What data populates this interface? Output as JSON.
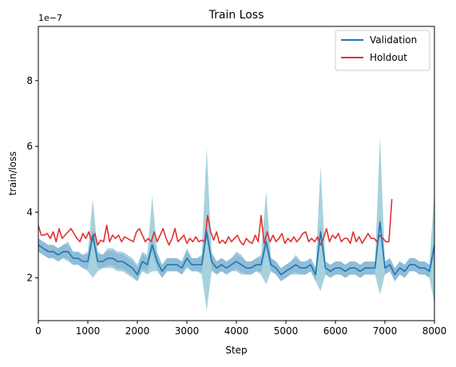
{
  "chart_data": {
    "type": "line",
    "title": "Train Loss",
    "xlabel": "Step",
    "ylabel": "train/loss",
    "y_offset_label": "1e−7",
    "xlim": [
      0,
      8000
    ],
    "ylim": [
      0.7,
      9.65
    ],
    "y_scale_note": "values are in units of 1e-7",
    "xticks": [
      0,
      1000,
      2000,
      3000,
      4000,
      5000,
      6000,
      7000,
      8000
    ],
    "xtick_labels": [
      "0",
      "1000",
      "2000",
      "3000",
      "4000",
      "5000",
      "6000",
      "7000",
      "8000"
    ],
    "yticks": [
      2,
      4,
      6,
      8
    ],
    "ytick_labels": [
      "2",
      "4",
      "6",
      "8"
    ],
    "grid": false,
    "legend_position": "top-right",
    "series": [
      {
        "name": "Validation",
        "color": "#1f77b4",
        "band_color": "#8fbcd7",
        "spike_color": "#a6d2dd",
        "x": [
          0,
          100,
          200,
          300,
          400,
          500,
          600,
          700,
          800,
          900,
          1000,
          1100,
          1200,
          1300,
          1400,
          1500,
          1600,
          1700,
          1800,
          1900,
          2000,
          2100,
          2200,
          2300,
          2400,
          2500,
          2600,
          2700,
          2800,
          2900,
          3000,
          3100,
          3200,
          3300,
          3400,
          3500,
          3600,
          3700,
          3800,
          3900,
          4000,
          4100,
          4200,
          4300,
          4400,
          4500,
          4600,
          4700,
          4800,
          4900,
          5000,
          5100,
          5200,
          5300,
          5400,
          5500,
          5600,
          5700,
          5800,
          5900,
          6000,
          6100,
          6200,
          6300,
          6400,
          6500,
          6600,
          6700,
          6800,
          6900,
          7000,
          7100,
          7200,
          7300,
          7400,
          7500,
          7600,
          7700,
          7800,
          7900,
          8000
        ],
        "y": [
          3.0,
          2.9,
          2.8,
          2.8,
          2.7,
          2.8,
          2.8,
          2.6,
          2.6,
          2.5,
          2.5,
          3.3,
          2.5,
          2.5,
          2.6,
          2.6,
          2.5,
          2.5,
          2.4,
          2.3,
          2.1,
          2.5,
          2.4,
          3.0,
          2.5,
          2.2,
          2.4,
          2.4,
          2.4,
          2.3,
          2.6,
          2.4,
          2.4,
          2.4,
          3.4,
          2.5,
          2.3,
          2.4,
          2.3,
          2.4,
          2.5,
          2.4,
          2.3,
          2.3,
          2.4,
          2.4,
          3.1,
          2.4,
          2.3,
          2.1,
          2.2,
          2.3,
          2.4,
          2.3,
          2.3,
          2.4,
          2.1,
          3.4,
          2.3,
          2.2,
          2.3,
          2.3,
          2.2,
          2.3,
          2.3,
          2.2,
          2.3,
          2.3,
          2.3,
          3.7,
          2.3,
          2.4,
          2.1,
          2.3,
          2.2,
          2.4,
          2.4,
          2.3,
          2.3,
          2.2,
          3.0
        ],
        "band_lower": [
          2.8,
          2.7,
          2.6,
          2.6,
          2.5,
          2.6,
          2.5,
          2.4,
          2.4,
          2.3,
          2.2,
          2.0,
          2.2,
          2.3,
          2.3,
          2.3,
          2.2,
          2.2,
          2.1,
          2.0,
          1.9,
          2.2,
          2.1,
          2.2,
          2.2,
          2.0,
          2.2,
          2.2,
          2.2,
          2.1,
          2.3,
          2.2,
          2.2,
          2.1,
          1.0,
          2.2,
          2.1,
          2.2,
          2.1,
          2.2,
          2.2,
          2.1,
          2.1,
          2.1,
          2.2,
          2.1,
          1.8,
          2.2,
          2.1,
          1.9,
          2.0,
          2.1,
          2.1,
          2.1,
          2.1,
          2.2,
          1.9,
          1.6,
          2.1,
          2.0,
          2.1,
          2.1,
          2.0,
          2.1,
          2.1,
          2.0,
          2.1,
          2.1,
          2.1,
          1.5,
          2.1,
          2.2,
          1.9,
          2.1,
          2.0,
          2.2,
          2.2,
          2.1,
          2.1,
          2.0,
          1.2
        ],
        "band_upper": [
          3.2,
          3.1,
          3.0,
          3.0,
          2.9,
          3.0,
          3.1,
          2.8,
          2.8,
          2.7,
          2.8,
          4.4,
          2.8,
          2.7,
          2.9,
          2.9,
          2.8,
          2.8,
          2.7,
          2.6,
          2.4,
          2.8,
          2.7,
          4.5,
          2.8,
          2.4,
          2.6,
          2.6,
          2.6,
          2.5,
          2.9,
          2.6,
          2.6,
          2.7,
          5.95,
          2.8,
          2.5,
          2.6,
          2.5,
          2.6,
          2.8,
          2.7,
          2.5,
          2.5,
          2.6,
          2.7,
          4.65,
          2.6,
          2.5,
          2.3,
          2.4,
          2.5,
          2.7,
          2.5,
          2.5,
          2.6,
          2.3,
          5.4,
          2.5,
          2.4,
          2.5,
          2.5,
          2.4,
          2.5,
          2.5,
          2.4,
          2.5,
          2.5,
          2.5,
          6.3,
          2.5,
          2.6,
          2.3,
          2.5,
          2.4,
          2.6,
          2.6,
          2.5,
          2.5,
          2.4,
          4.7
        ]
      },
      {
        "name": "Holdout",
        "color": "#e03232",
        "x": [
          0,
          60,
          120,
          180,
          240,
          300,
          360,
          420,
          480,
          540,
          600,
          660,
          720,
          780,
          840,
          900,
          960,
          1020,
          1080,
          1140,
          1200,
          1260,
          1320,
          1380,
          1440,
          1500,
          1560,
          1620,
          1680,
          1740,
          1800,
          1860,
          1920,
          1980,
          2040,
          2100,
          2160,
          2220,
          2280,
          2340,
          2400,
          2460,
          2520,
          2580,
          2640,
          2700,
          2760,
          2820,
          2880,
          2940,
          3000,
          3060,
          3120,
          3180,
          3240,
          3300,
          3360,
          3420,
          3480,
          3540,
          3600,
          3660,
          3720,
          3780,
          3840,
          3900,
          3960,
          4020,
          4080,
          4140,
          4200,
          4260,
          4320,
          4380,
          4440,
          4500,
          4560,
          4620,
          4680,
          4740,
          4800,
          4860,
          4920,
          4980,
          5040,
          5100,
          5160,
          5220,
          5280,
          5340,
          5400,
          5460,
          5520,
          5580,
          5640,
          5700,
          5760,
          5820,
          5880,
          5940,
          6000,
          6060,
          6120,
          6180,
          6240,
          6300,
          6360,
          6420,
          6480,
          6540,
          6600,
          6660,
          6720,
          6780,
          6840,
          6900,
          6960,
          7020,
          7080,
          7140
        ],
        "y": [
          3.6,
          3.3,
          3.3,
          3.35,
          3.2,
          3.4,
          3.1,
          3.5,
          3.2,
          3.3,
          3.4,
          3.5,
          3.35,
          3.2,
          3.1,
          3.35,
          3.2,
          3.4,
          3.1,
          3.35,
          3.0,
          3.15,
          3.1,
          3.6,
          3.1,
          3.3,
          3.2,
          3.3,
          3.1,
          3.25,
          3.2,
          3.15,
          3.1,
          3.4,
          3.5,
          3.3,
          3.1,
          3.2,
          3.1,
          3.4,
          3.1,
          3.3,
          3.5,
          3.2,
          3.0,
          3.2,
          3.5,
          3.1,
          3.2,
          3.3,
          3.05,
          3.2,
          3.1,
          3.25,
          3.1,
          3.15,
          3.1,
          3.9,
          3.4,
          3.15,
          3.4,
          3.05,
          3.15,
          3.05,
          3.25,
          3.1,
          3.2,
          3.3,
          3.1,
          3.0,
          3.2,
          3.1,
          3.05,
          3.3,
          3.1,
          3.9,
          3.05,
          3.4,
          3.1,
          3.3,
          3.1,
          3.2,
          3.35,
          3.05,
          3.2,
          3.1,
          3.25,
          3.1,
          3.2,
          3.35,
          3.4,
          3.1,
          3.2,
          3.1,
          3.25,
          3.0,
          3.2,
          3.5,
          3.1,
          3.3,
          3.2,
          3.35,
          3.1,
          3.2,
          3.2,
          3.05,
          3.4,
          3.1,
          3.25,
          3.05,
          3.2,
          3.35,
          3.2,
          3.2,
          3.1,
          3.3,
          3.2,
          3.1,
          3.1,
          4.4
        ]
      }
    ]
  }
}
